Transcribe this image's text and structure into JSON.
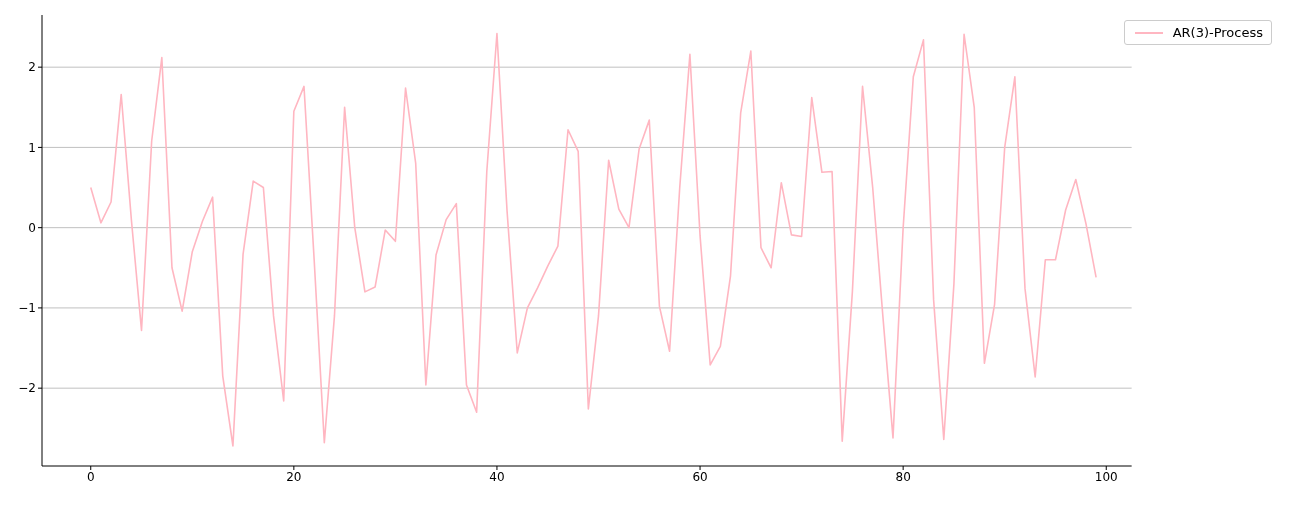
{
  "chart_data": {
    "type": "line",
    "x": [
      0,
      1,
      2,
      3,
      4,
      5,
      6,
      7,
      8,
      9,
      10,
      11,
      12,
      13,
      14,
      15,
      16,
      17,
      18,
      19,
      20,
      21,
      22,
      23,
      24,
      25,
      26,
      27,
      28,
      29,
      30,
      31,
      32,
      33,
      34,
      35,
      36,
      37,
      38,
      39,
      40,
      41,
      42,
      43,
      44,
      45,
      46,
      47,
      48,
      49,
      50,
      51,
      52,
      53,
      54,
      55,
      56,
      57,
      58,
      59,
      60,
      61,
      62,
      63,
      64,
      65,
      66,
      67,
      68,
      69,
      70,
      71,
      72,
      73,
      74,
      75,
      76,
      77,
      78,
      79,
      80,
      81,
      82,
      83,
      84,
      85,
      86,
      87,
      88,
      89,
      90,
      91,
      92,
      93,
      94,
      95,
      96,
      97,
      98,
      99
    ],
    "series": [
      {
        "name": "AR(3)-Process",
        "color": "#ffb6c1",
        "values": [
          0.5,
          0.06,
          0.32,
          1.66,
          0.1,
          -1.28,
          1.08,
          2.12,
          -0.5,
          -1.04,
          -0.3,
          0.08,
          0.38,
          -1.85,
          -2.72,
          -0.33,
          0.58,
          0.5,
          -1.1,
          -2.16,
          1.45,
          1.76,
          -0.4,
          -2.68,
          -1.1,
          1.5,
          0.0,
          -0.8,
          -0.74,
          -0.03,
          -0.17,
          1.74,
          0.8,
          -1.96,
          -0.34,
          0.1,
          0.3,
          -1.96,
          -2.3,
          0.7,
          2.42,
          0.2,
          -1.56,
          -1.0,
          -0.75,
          -0.48,
          -0.23,
          1.22,
          0.95,
          -2.26,
          -1.1,
          0.84,
          0.23,
          0.0,
          0.98,
          1.34,
          -0.98,
          -1.54,
          0.5,
          2.16,
          -0.1,
          -1.71,
          -1.48,
          -0.6,
          1.43,
          2.2,
          -0.25,
          -0.5,
          0.56,
          -0.09,
          -0.11,
          1.62,
          0.69,
          0.7,
          -2.66,
          -0.8,
          1.76,
          0.5,
          -1.1,
          -2.62,
          0.0,
          1.88,
          2.34,
          -0.9,
          -2.64,
          -0.7,
          2.41,
          1.5,
          -1.69,
          -0.96,
          1.0,
          1.88,
          -0.76,
          -1.86,
          -0.4,
          -0.4,
          0.22,
          0.6,
          0.05,
          -0.62
        ]
      }
    ],
    "xlim": [
      -4.8,
      102.5
    ],
    "xticks": [
      0,
      20,
      40,
      60,
      80,
      100
    ],
    "ylim": [
      -2.97,
      2.65
    ],
    "yticks": [
      {
        "value": -2,
        "label": "−2"
      },
      {
        "value": -1,
        "label": "−1"
      },
      0,
      1,
      2
    ],
    "grid": "y",
    "legend": "top right",
    "marker": "none",
    "line_style": "solid"
  }
}
